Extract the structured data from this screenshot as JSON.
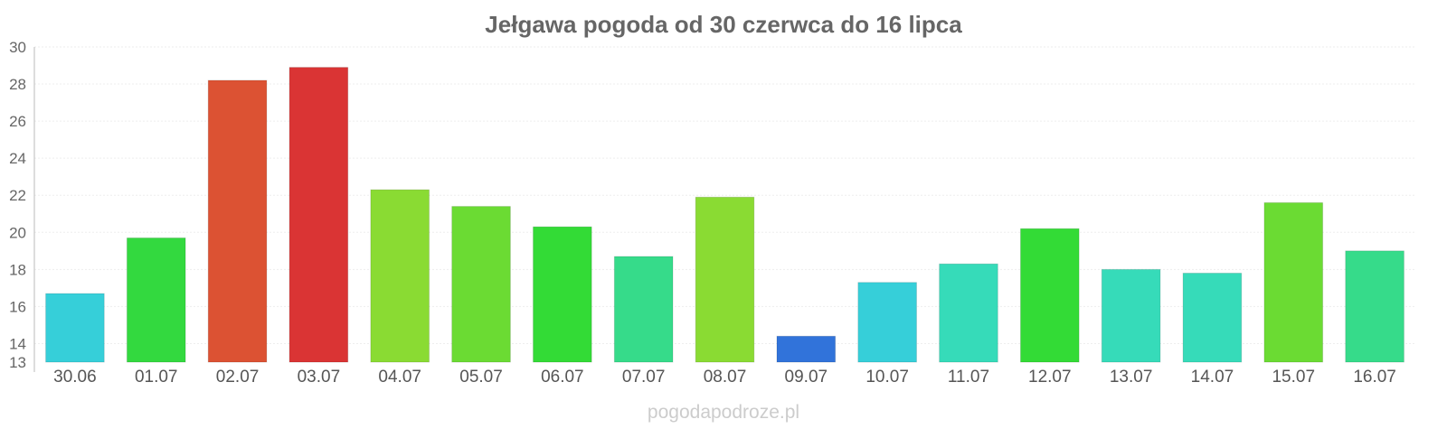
{
  "chart_data": {
    "type": "bar",
    "title": "Jełgawa pogoda od 30 czerwca do 16 lipca",
    "xlabel": "",
    "ylabel": "",
    "ylim": [
      13,
      30
    ],
    "yticks": [
      "13",
      "14",
      "16",
      "18",
      "20",
      "22",
      "24",
      "26",
      "28",
      "30"
    ],
    "grid": true,
    "legend": "none",
    "categories": [
      "30.06",
      "01.07",
      "02.07",
      "03.07",
      "04.07",
      "05.07",
      "06.07",
      "07.07",
      "08.07",
      "09.07",
      "10.07",
      "11.07",
      "12.07",
      "13.07",
      "14.07",
      "15.07",
      "16.07"
    ],
    "values": [
      16.7,
      19.7,
      28.2,
      28.9,
      22.3,
      21.4,
      20.3,
      18.7,
      21.9,
      14.4,
      17.3,
      18.3,
      20.2,
      18.0,
      17.8,
      21.6,
      19.0
    ],
    "colors": [
      "#36CFD9",
      "#33D93F",
      "#DC5233",
      "#DA3434",
      "#8ADB33",
      "#6BDB33",
      "#33DB36",
      "#36DB8A",
      "#8ADB33",
      "#3173DA",
      "#36CFD9",
      "#36DBB9",
      "#33DB36",
      "#36DBB9",
      "#36DBB9",
      "#6BDB33",
      "#36DB8A"
    ]
  },
  "footer": {
    "watermark": "pogodapodroze.pl"
  }
}
